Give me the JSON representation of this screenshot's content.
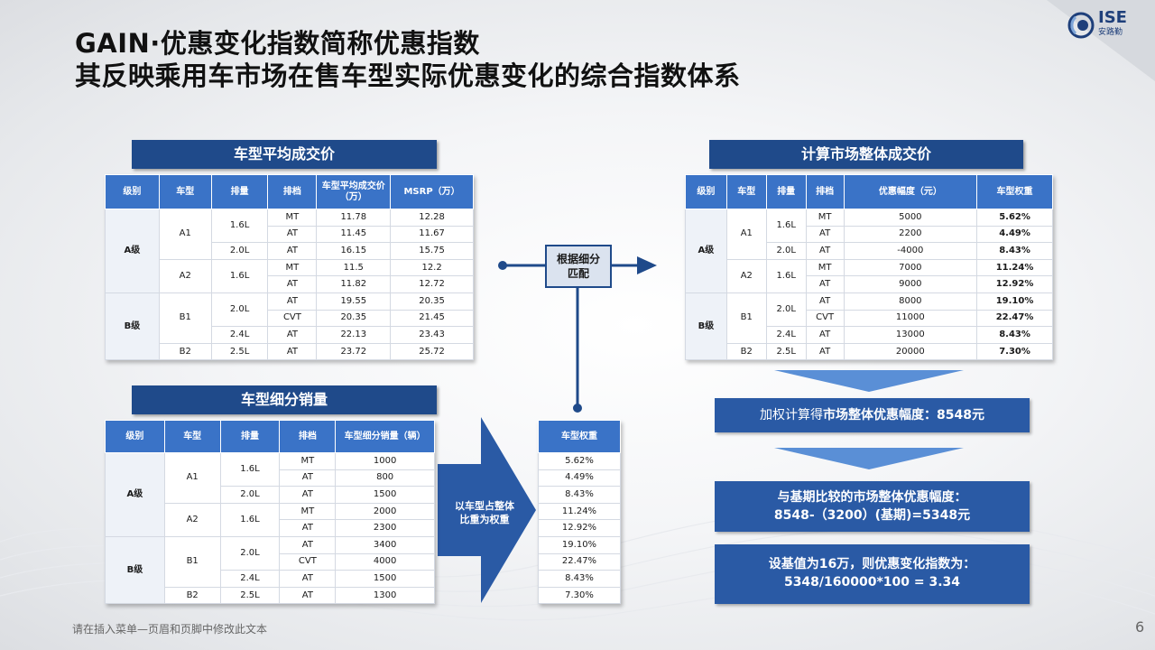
{
  "title": {
    "line1": "GAIN·优惠变化指数简称优惠指数",
    "line2": "其反映乘用车市场在售车型实际优惠变化的综合指数体系"
  },
  "logo": {
    "brand": "ISE",
    "sub": "安路勤"
  },
  "avg_price": {
    "header": "车型平均成交价",
    "columns": [
      "级别",
      "车型",
      "排量",
      "排档",
      "车型平均成交价（万）",
      "MSRP（万）"
    ],
    "rows": [
      [
        "11.78",
        "12.28"
      ],
      [
        "11.45",
        "11.67"
      ],
      [
        "16.15",
        "15.75"
      ],
      [
        "11.5",
        "12.2"
      ],
      [
        "11.82",
        "12.72"
      ],
      [
        "19.55",
        "20.35"
      ],
      [
        "20.35",
        "21.45"
      ],
      [
        "22.13",
        "23.43"
      ],
      [
        "23.72",
        "25.72"
      ]
    ]
  },
  "market_price": {
    "header": "计算市场整体成交价",
    "columns": [
      "级别",
      "车型",
      "排量",
      "排档",
      "优惠幅度（元）",
      "车型权重"
    ],
    "rows": [
      [
        "5000",
        "5.62%"
      ],
      [
        "2200",
        "4.49%"
      ],
      [
        "-4000",
        "8.43%"
      ],
      [
        "7000",
        "11.24%"
      ],
      [
        "9000",
        "12.92%"
      ],
      [
        "8000",
        "19.10%"
      ],
      [
        "11000",
        "22.47%"
      ],
      [
        "13000",
        "8.43%"
      ],
      [
        "20000",
        "7.30%"
      ]
    ]
  },
  "sales": {
    "header": "车型细分销量",
    "columns": [
      "级别",
      "车型",
      "排量",
      "排档",
      "车型细分销量（辆）"
    ],
    "rows": [
      "1000",
      "800",
      "1500",
      "2000",
      "2300",
      "3400",
      "4000",
      "1500",
      "1300"
    ]
  },
  "weights": {
    "column": "车型权重",
    "rows": [
      "5.62%",
      "4.49%",
      "8.43%",
      "11.24%",
      "12.92%",
      "19.10%",
      "22.47%",
      "8.43%",
      "7.30%"
    ]
  },
  "common": {
    "grades": [
      "A级",
      "B级"
    ],
    "models": [
      "A1",
      "A2",
      "B1",
      "B2"
    ],
    "displacements": [
      "1.6L",
      "2.0L",
      "1.6L",
      "2.0L",
      "2.4L",
      "2.5L"
    ],
    "gears": [
      "MT",
      "AT",
      "AT",
      "MT",
      "AT",
      "AT",
      "CVT",
      "AT",
      "AT"
    ]
  },
  "labels": {
    "match": "根据细分匹配",
    "match_l1": "根据细分",
    "match_l2": "匹配",
    "big_arrow_l1": "以车型占整体",
    "big_arrow_l2": "比重为权重"
  },
  "results": {
    "r1_prefix": "加权计算得",
    "r1_bold": "市场整体优惠幅度：8548元",
    "r2_line1": "与基期比较的市场整体优惠幅度：",
    "r2_line2": "8548-（3200）(基期)=5348元",
    "r3_line1": "设基值为16万，则优惠变化指数为：",
    "r3_line2": "5348/160000*100 = 3.34"
  },
  "footer": "请在插入菜单—页眉和页脚中修改此文本",
  "page_number": "6",
  "colors": {
    "header_dark": "#1f4a8a",
    "table_head": "#3a73c7",
    "result_box": "#2a5aa5",
    "arrow": "#2a5aa5"
  }
}
